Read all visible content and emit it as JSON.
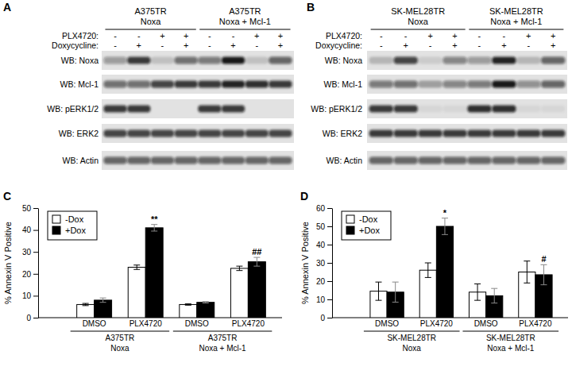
{
  "blots": [
    {
      "label": "A",
      "groups": [
        {
          "lines": [
            "A375TR",
            "Noxa"
          ]
        },
        {
          "lines": [
            "A375TR",
            "Noxa + Mcl-1"
          ]
        }
      ],
      "conditions": [
        {
          "label": "PLX4720:",
          "signs": [
            "-",
            "-",
            "+",
            "+",
            "-",
            "-",
            "+",
            "+"
          ]
        },
        {
          "label": "Doxycycline:",
          "signs": [
            "-",
            "+",
            "-",
            "+",
            "-",
            "+",
            "-",
            "+"
          ]
        }
      ],
      "rows": [
        {
          "label": "WB: Noxa",
          "bands": [
            0.35,
            0.8,
            0.15,
            0.55,
            0.5,
            0.95,
            0.15,
            0.6
          ]
        },
        {
          "label": "WB: Mcl-1",
          "bands": [
            0.55,
            0.55,
            0.75,
            0.8,
            0.8,
            0.9,
            0.85,
            0.8
          ]
        },
        {
          "label": "WB: pERK1/2",
          "bands": [
            0.8,
            0.8,
            0,
            0,
            0.8,
            0.8,
            0,
            0
          ]
        },
        {
          "label": "WB: ERK2",
          "bands": [
            0.75,
            0.75,
            0.75,
            0.75,
            0.75,
            0.75,
            0.75,
            0.75
          ]
        },
        {
          "label": "WB: Actin",
          "bands": [
            0.6,
            0.6,
            0.6,
            0.6,
            0.6,
            0.6,
            0.6,
            0.6
          ]
        }
      ]
    },
    {
      "label": "B",
      "groups": [
        {
          "lines": [
            "SK-MEL28TR",
            "Noxa"
          ]
        },
        {
          "lines": [
            "SK-MEL28TR",
            "Noxa + Mcl-1"
          ]
        }
      ],
      "conditions": [
        {
          "label": "PLX4720:",
          "signs": [
            "-",
            "-",
            "+",
            "+",
            "-",
            "-",
            "+",
            "+"
          ]
        },
        {
          "label": "Doxycycline:",
          "signs": [
            "-",
            "+",
            "-",
            "+",
            "-",
            "+",
            "-",
            "+"
          ]
        }
      ],
      "rows": [
        {
          "label": "WB: Noxa",
          "bands": [
            0.2,
            0.75,
            0.1,
            0.45,
            0.35,
            0.9,
            0.2,
            0.6
          ]
        },
        {
          "label": "WB: Mcl-1",
          "bands": [
            0.5,
            0.55,
            0.3,
            0.45,
            0.5,
            0.95,
            0.4,
            0.6
          ]
        },
        {
          "label": "WB: pERK1/2",
          "bands": [
            0.8,
            0.8,
            0.05,
            0.05,
            0.85,
            0.85,
            0.05,
            0.05
          ]
        },
        {
          "label": "WB: ERK2",
          "bands": [
            0.8,
            0.8,
            0.8,
            0.8,
            0.8,
            0.8,
            0.8,
            0.8
          ]
        },
        {
          "label": "WB: Actin",
          "bands": [
            0.6,
            0.6,
            0.6,
            0.6,
            0.6,
            0.6,
            0.6,
            0.6
          ]
        }
      ]
    }
  ],
  "chart_data": [
    {
      "type": "bar",
      "title": "C",
      "ylabel": "% Annexin V Positive",
      "categories": [
        "DMSO",
        "PLX4720",
        "DMSO",
        "PLX4720"
      ],
      "groups": [
        {
          "lines": [
            "A375TR",
            "Noxa"
          ]
        },
        {
          "lines": [
            "A375TR",
            "Noxa + Mcl-1"
          ]
        }
      ],
      "series": [
        {
          "name": "-Dox",
          "color": "#ffffff",
          "values": [
            6,
            23,
            6,
            22.5
          ],
          "errors": [
            0.5,
            1,
            0.3,
            1
          ],
          "annotations": [
            null,
            null,
            null,
            null
          ]
        },
        {
          "name": "+Dox",
          "color": "#000000",
          "values": [
            8,
            41,
            7,
            25.5
          ],
          "errors": [
            1,
            1.5,
            0.3,
            2
          ],
          "annotations": [
            null,
            "**",
            null,
            "##"
          ]
        }
      ],
      "ylim": [
        0,
        50
      ],
      "yticks": [
        0,
        10,
        20,
        30,
        40,
        50
      ],
      "legend": "top-left",
      "grid": false
    },
    {
      "type": "bar",
      "title": "D",
      "ylabel": "% Annexin V Positive",
      "categories": [
        "DMSO",
        "PLX4720",
        "DMSO",
        "PLX4720"
      ],
      "groups": [
        {
          "lines": [
            "SK-MEL28TR",
            "Noxa"
          ]
        },
        {
          "lines": [
            "SK-MEL28TR",
            "Noxa + Mcl-1"
          ]
        }
      ],
      "series": [
        {
          "name": "-Dox",
          "color": "#ffffff",
          "values": [
            14.5,
            26,
            14,
            25
          ],
          "errors": [
            5,
            4,
            4.5,
            6
          ],
          "annotations": [
            null,
            null,
            null,
            null
          ]
        },
        {
          "name": "+Dox",
          "color": "#000000",
          "values": [
            14,
            50,
            12,
            23.5
          ],
          "errors": [
            5.5,
            4.5,
            4,
            5.5
          ],
          "annotations": [
            null,
            "*",
            null,
            "#"
          ]
        }
      ],
      "ylim": [
        0,
        60
      ],
      "yticks": [
        0,
        10,
        20,
        30,
        40,
        50,
        60
      ],
      "legend": "top-left",
      "grid": false
    }
  ]
}
